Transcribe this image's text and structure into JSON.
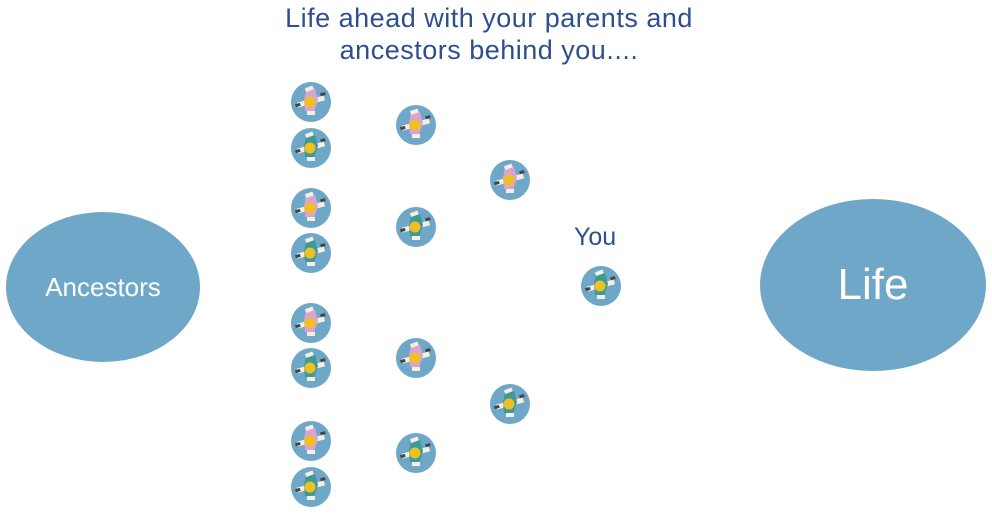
{
  "title_lines": [
    "Life ahead with your parents and",
    "ancestors behind you...."
  ],
  "ancestors_label": "Ancestors",
  "life_label": "Life",
  "you_label": "You",
  "colors": {
    "node": "#6fa7c9",
    "text": "#2e4f8f",
    "female": "#d9a3d6",
    "male": "#3e9a9a",
    "head": "#f0c020"
  },
  "generations": [
    {
      "people": [
        "female-figure-icon",
        "male-figure-icon",
        "female-figure-icon",
        "male-figure-icon",
        "female-figure-icon",
        "male-figure-icon",
        "female-figure-icon",
        "male-figure-icon"
      ]
    },
    {
      "people": [
        "female-figure-icon",
        "male-figure-icon",
        "female-figure-icon",
        "male-figure-icon"
      ]
    },
    {
      "people": [
        "female-figure-icon",
        "male-figure-icon"
      ]
    },
    {
      "people": [
        "male-figure-icon"
      ]
    }
  ]
}
